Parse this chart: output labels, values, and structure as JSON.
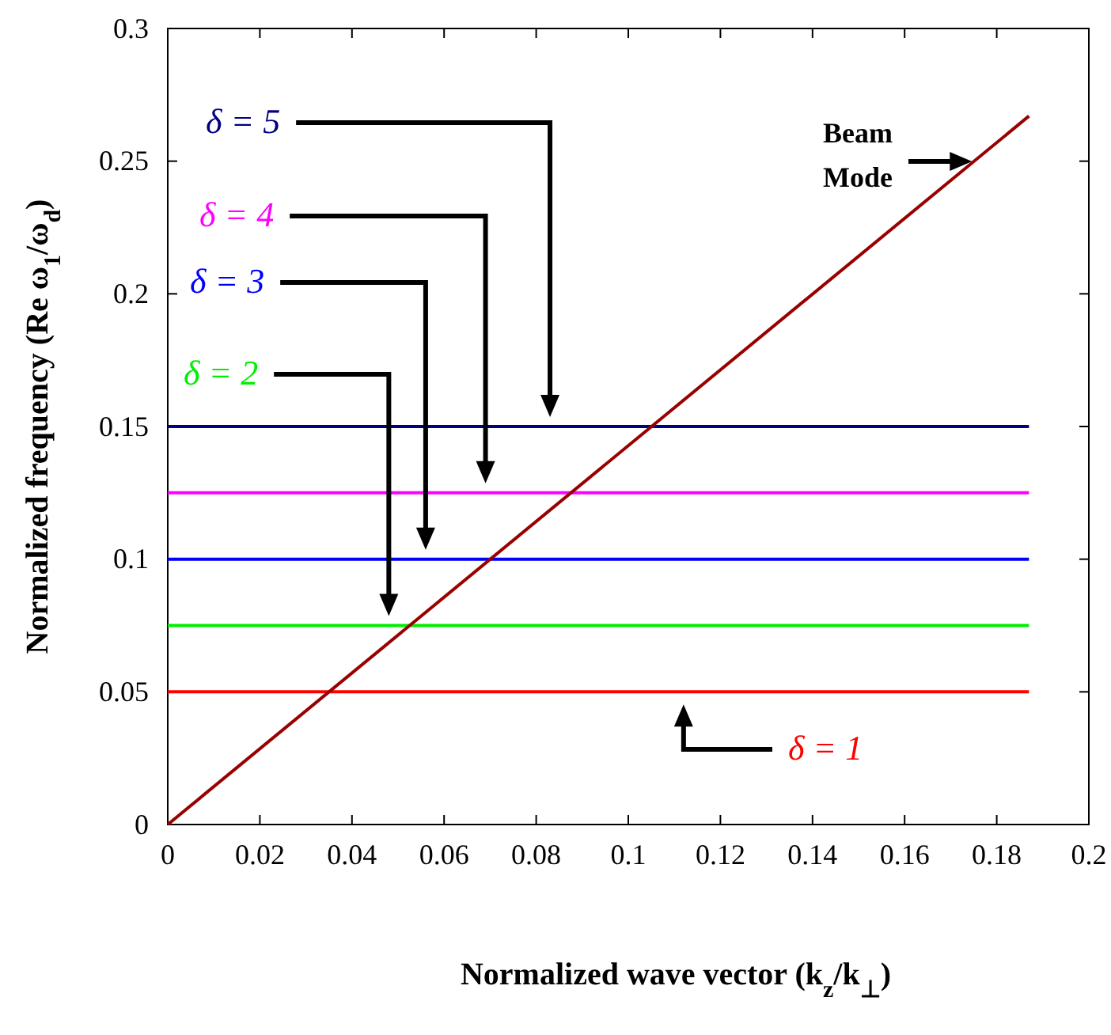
{
  "chart_data": {
    "type": "line",
    "xlabel": "Normalized wave vector (k$_{z}$/k$_{⊥}$)",
    "ylabel": "Normalized frequency (Re ω$_{1}$/ω$_{d}$)",
    "xlim": [
      0,
      0.2
    ],
    "ylim": [
      0,
      0.3
    ],
    "xticks": [
      0,
      0.02,
      0.04,
      0.06,
      0.08,
      0.1,
      0.12,
      0.14,
      0.16,
      0.18,
      0.2
    ],
    "yticks": [
      0,
      0.05,
      0.1,
      0.15,
      0.2,
      0.25,
      0.3
    ],
    "grid": false,
    "legend": false,
    "marker": "none",
    "line_style": "solid",
    "x": [
      0,
      0.187
    ],
    "series": [
      {
        "name": "δ = 1",
        "color": "#ff0000",
        "values": [
          0.05,
          0.05
        ]
      },
      {
        "name": "δ = 2",
        "color": "#00ee00",
        "values": [
          0.075,
          0.075
        ]
      },
      {
        "name": "δ = 3",
        "color": "#0000ff",
        "values": [
          0.1,
          0.1
        ]
      },
      {
        "name": "δ = 4",
        "color": "#ff00ff",
        "values": [
          0.125,
          0.125
        ]
      },
      {
        "name": "δ = 5",
        "color": "#000080",
        "values": [
          0.15,
          0.15
        ]
      },
      {
        "name": "Beam Mode",
        "color": "#990000",
        "values": [
          0,
          0.267
        ]
      }
    ]
  }
}
